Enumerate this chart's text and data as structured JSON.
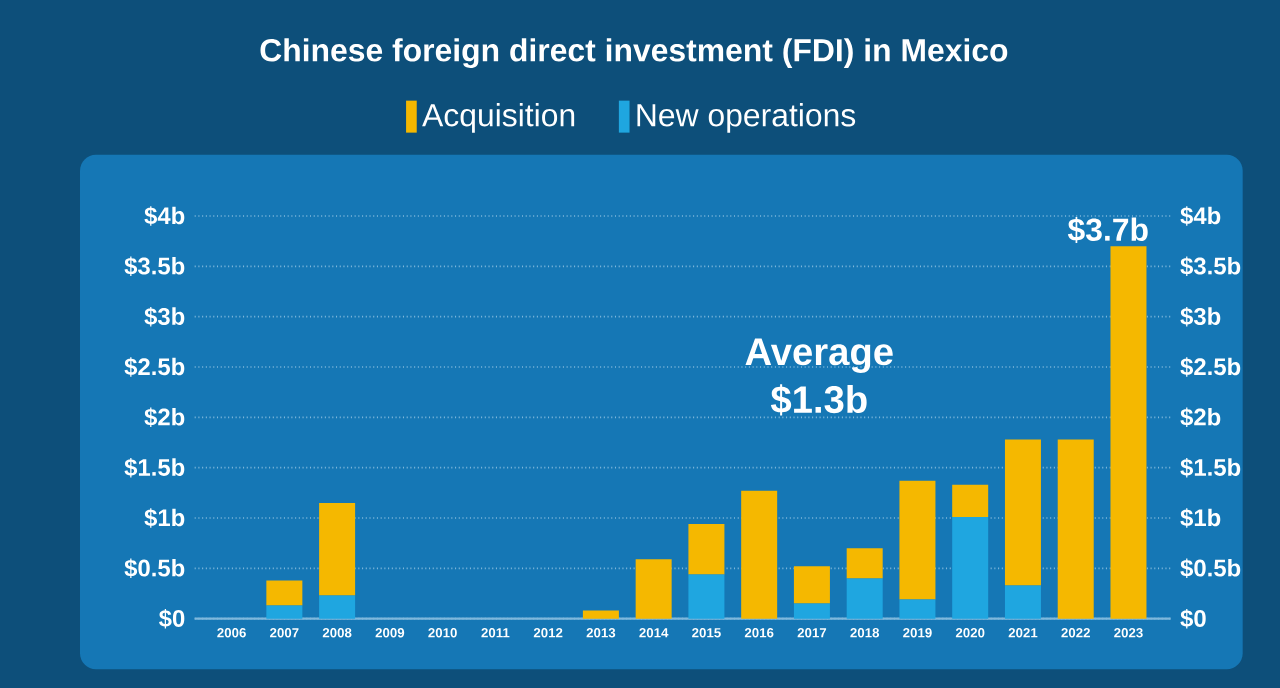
{
  "chart_data": {
    "type": "bar",
    "stacked": true,
    "title": "Chinese foreign direct investment (FDI) in Mexico",
    "categories": [
      "2006",
      "2007",
      "2008",
      "2009",
      "2010",
      "2011",
      "2012",
      "2013",
      "2014",
      "2015",
      "2016",
      "2017",
      "2018",
      "2019",
      "2020",
      "2021",
      "2022",
      "2023"
    ],
    "series": [
      {
        "name": "New operations",
        "color": "#1fa6e0",
        "values": [
          0,
          0.13,
          0.23,
          0,
          0,
          0,
          0,
          0,
          0,
          0.44,
          0,
          0.15,
          0.4,
          0.19,
          1.01,
          0.33,
          0,
          0
        ]
      },
      {
        "name": "Acquisition",
        "color": "#f5b800",
        "values": [
          0,
          0.25,
          0.92,
          0,
          0,
          0,
          0,
          0.08,
          0.59,
          0.5,
          1.27,
          0.37,
          0.3,
          1.18,
          0.32,
          1.45,
          1.78,
          3.7
        ]
      }
    ],
    "ylim": [
      0,
      4
    ],
    "yticks": [
      {
        "value": 0,
        "label": "$0"
      },
      {
        "value": 0.5,
        "label": "$0.5b"
      },
      {
        "value": 1,
        "label": "$1b"
      },
      {
        "value": 1.5,
        "label": "$1.5b"
      },
      {
        "value": 2,
        "label": "$2b"
      },
      {
        "value": 2.5,
        "label": "$2.5b"
      },
      {
        "value": 3,
        "label": "$3b"
      },
      {
        "value": 3.5,
        "label": "$3.5b"
      },
      {
        "value": 4,
        "label": "$4b"
      }
    ],
    "y2lim": [
      0,
      4
    ],
    "y2ticks": [
      {
        "value": 0,
        "label": "$0"
      },
      {
        "value": 0.5,
        "label": "$0.5b"
      },
      {
        "value": 1,
        "label": "$1b"
      },
      {
        "value": 1.5,
        "label": "$1.5b"
      },
      {
        "value": 2,
        "label": "$2b"
      },
      {
        "value": 2.5,
        "label": "$2.5b"
      },
      {
        "value": 3,
        "label": "$3b"
      },
      {
        "value": 3.5,
        "label": "$3.5b"
      },
      {
        "value": 4,
        "label": "$4b"
      }
    ],
    "grid": "y",
    "legend": "top",
    "annotations": [
      "Average **$1.3b**",
      {
        "text": "$3.7b",
        "x": "2023",
        "y": 3.7
      }
    ]
  }
}
